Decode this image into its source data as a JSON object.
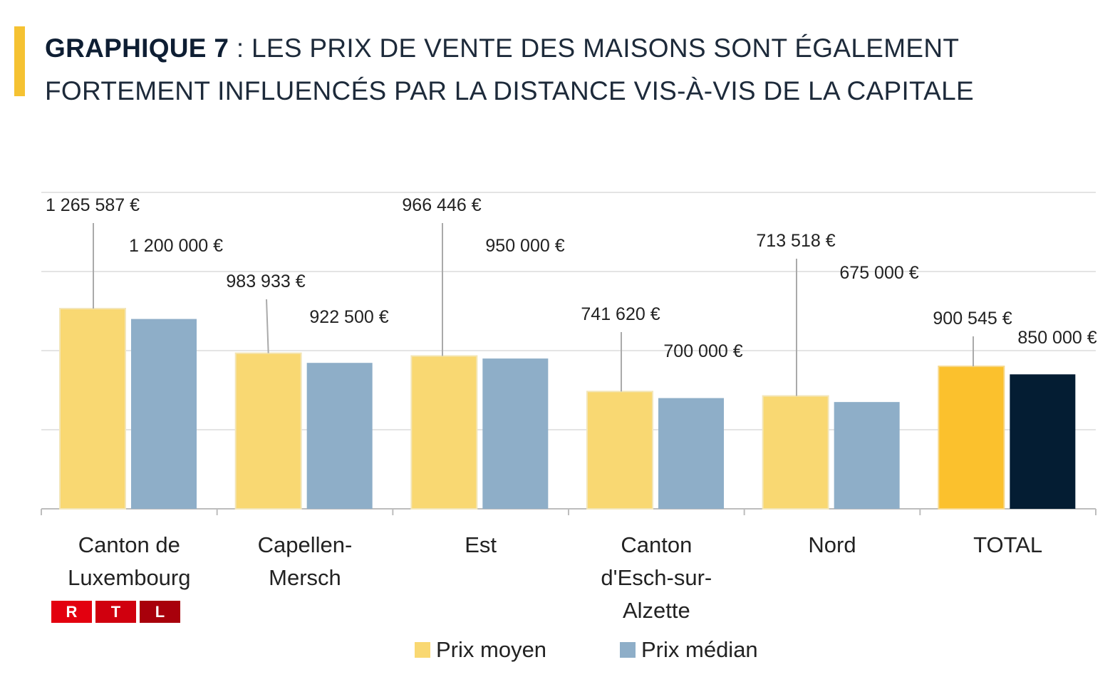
{
  "title": {
    "bold": "GRAPHIQUE 7",
    "rest": " : LES PRIX DE VENTE DES MAISONS SONT ÉGALEMENT FORTEMENT INFLUENCÉS PAR LA DISTANCE VIS-À-VIS DE LA CAPITALE"
  },
  "logo": "RTL",
  "chart_data": {
    "type": "bar",
    "title": "GRAPHIQUE 7 : LES PRIX DE VENTE DES MAISONS SONT ÉGALEMENT FORTEMENT INFLUENCÉS PAR LA DISTANCE VIS-À-VIS DE LA CAPITALE",
    "categories": [
      "Canton de Luxembourg",
      "Capellen-Mersch",
      "Est",
      "Canton d'Esch-sur-Alzette",
      "Nord",
      "TOTAL"
    ],
    "series": [
      {
        "name": "Prix moyen",
        "values": [
          1265587,
          983933,
          966446,
          741620,
          713518,
          900545
        ],
        "labels": [
          "1 265 587 €",
          "983 933 €",
          "966 446 €",
          "741 620 €",
          "713 518 €",
          "900 545 €"
        ],
        "color": "#f9d872",
        "highlight_color": "#fbc12d"
      },
      {
        "name": "Prix médian",
        "values": [
          1200000,
          922500,
          950000,
          700000,
          675000,
          850000
        ],
        "labels": [
          "1 200 000 €",
          "922 500 €",
          "950 000 €",
          "700 000 €",
          "675 000 €",
          "850 000 €"
        ],
        "color": "#8eaec8",
        "highlight_color": "#041d33"
      }
    ],
    "xlabel": "",
    "ylabel": "",
    "ylim": [
      0,
      2000000
    ],
    "grid": true,
    "legend": "bottom"
  }
}
